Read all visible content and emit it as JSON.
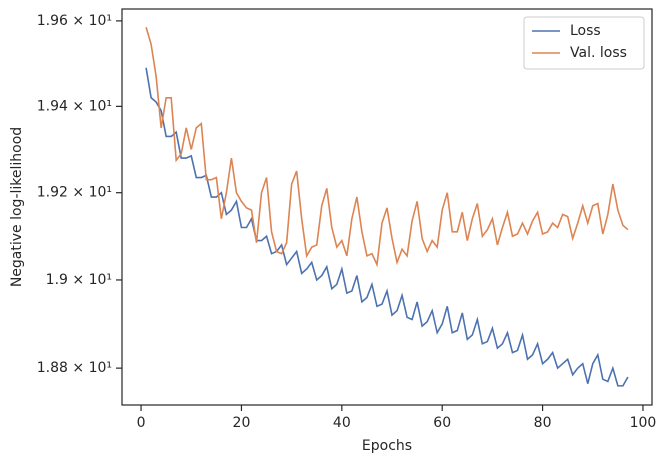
{
  "chart_data": {
    "type": "line",
    "xlabel": "Epochs",
    "ylabel": "Negative log-likelihood",
    "x": [
      1,
      2,
      3,
      4,
      5,
      6,
      7,
      8,
      9,
      10,
      11,
      12,
      13,
      14,
      15,
      16,
      17,
      18,
      19,
      20,
      21,
      22,
      23,
      24,
      25,
      26,
      27,
      28,
      29,
      30,
      31,
      32,
      33,
      34,
      35,
      36,
      37,
      38,
      39,
      40,
      41,
      42,
      43,
      44,
      45,
      46,
      47,
      48,
      49,
      50,
      51,
      52,
      53,
      54,
      55,
      56,
      57,
      58,
      59,
      60,
      61,
      62,
      63,
      64,
      65,
      66,
      67,
      68,
      69,
      70,
      71,
      72,
      73,
      74,
      75,
      76,
      77,
      78,
      79,
      80,
      81,
      82,
      83,
      84,
      85,
      86,
      87,
      88,
      89,
      90,
      91,
      92,
      93,
      94,
      95,
      96,
      97
    ],
    "series": [
      {
        "name": "Loss",
        "color": "#4c72b0",
        "values": [
          19.49,
          19.42,
          19.41,
          19.39,
          19.33,
          19.33,
          19.34,
          19.28,
          19.28,
          19.285,
          19.235,
          19.235,
          19.24,
          19.19,
          19.19,
          19.2,
          19.15,
          19.16,
          19.18,
          19.12,
          19.12,
          19.14,
          19.09,
          19.09,
          19.1,
          19.06,
          19.065,
          19.08,
          19.035,
          19.05,
          19.065,
          19.015,
          19.025,
          19.04,
          19.0,
          19.01,
          19.03,
          18.98,
          18.99,
          19.025,
          18.97,
          18.975,
          19.01,
          18.95,
          18.96,
          18.99,
          18.94,
          18.945,
          18.975,
          18.92,
          18.93,
          18.965,
          18.915,
          18.91,
          18.95,
          18.895,
          18.905,
          18.93,
          18.88,
          18.9,
          18.94,
          18.88,
          18.885,
          18.925,
          18.865,
          18.875,
          18.91,
          18.855,
          18.86,
          18.89,
          18.845,
          18.855,
          18.88,
          18.835,
          18.84,
          18.875,
          18.82,
          18.83,
          18.855,
          18.81,
          18.82,
          18.835,
          18.8,
          18.81,
          18.82,
          18.785,
          18.8,
          18.81,
          18.765,
          18.81,
          18.83,
          18.775,
          18.77,
          18.8,
          18.76,
          18.76,
          18.78
        ]
      },
      {
        "name": "Val. loss",
        "color": "#dd8452",
        "values": [
          19.585,
          19.545,
          19.47,
          19.35,
          19.42,
          19.42,
          19.275,
          19.29,
          19.35,
          19.3,
          19.35,
          19.36,
          19.23,
          19.23,
          19.235,
          19.14,
          19.2,
          19.28,
          19.2,
          19.18,
          19.165,
          19.16,
          19.085,
          19.2,
          19.235,
          19.11,
          19.065,
          19.06,
          19.085,
          19.22,
          19.25,
          19.14,
          19.055,
          19.075,
          19.08,
          19.17,
          19.21,
          19.12,
          19.075,
          19.09,
          19.055,
          19.14,
          19.19,
          19.11,
          19.055,
          19.06,
          19.035,
          19.13,
          19.165,
          19.095,
          19.04,
          19.07,
          19.055,
          19.135,
          19.18,
          19.095,
          19.065,
          19.09,
          19.075,
          19.16,
          19.2,
          19.11,
          19.11,
          19.155,
          19.09,
          19.14,
          19.175,
          19.1,
          19.115,
          19.14,
          19.08,
          19.12,
          19.155,
          19.1,
          19.105,
          19.13,
          19.105,
          19.135,
          19.155,
          19.105,
          19.11,
          19.13,
          19.12,
          19.15,
          19.145,
          19.095,
          19.13,
          19.17,
          19.13,
          19.17,
          19.175,
          19.105,
          19.15,
          19.22,
          19.16,
          19.125,
          19.115
        ]
      }
    ],
    "xlim": [
      -3.8,
      101.8
    ],
    "xticks": [
      0,
      20,
      40,
      60,
      80,
      100
    ],
    "ylim": [
      18.717,
      19.628
    ],
    "yscale": "log",
    "yticks": [
      {
        "value": 18.8,
        "label": "1.88 × 10¹"
      },
      {
        "value": 19.0,
        "label": "1.9 × 10¹"
      },
      {
        "value": 19.2,
        "label": "1.92 × 10¹"
      },
      {
        "value": 19.4,
        "label": "1.94 × 10¹"
      },
      {
        "value": 19.6,
        "label": "1.96 × 10¹"
      }
    ],
    "legend": "upper right"
  }
}
